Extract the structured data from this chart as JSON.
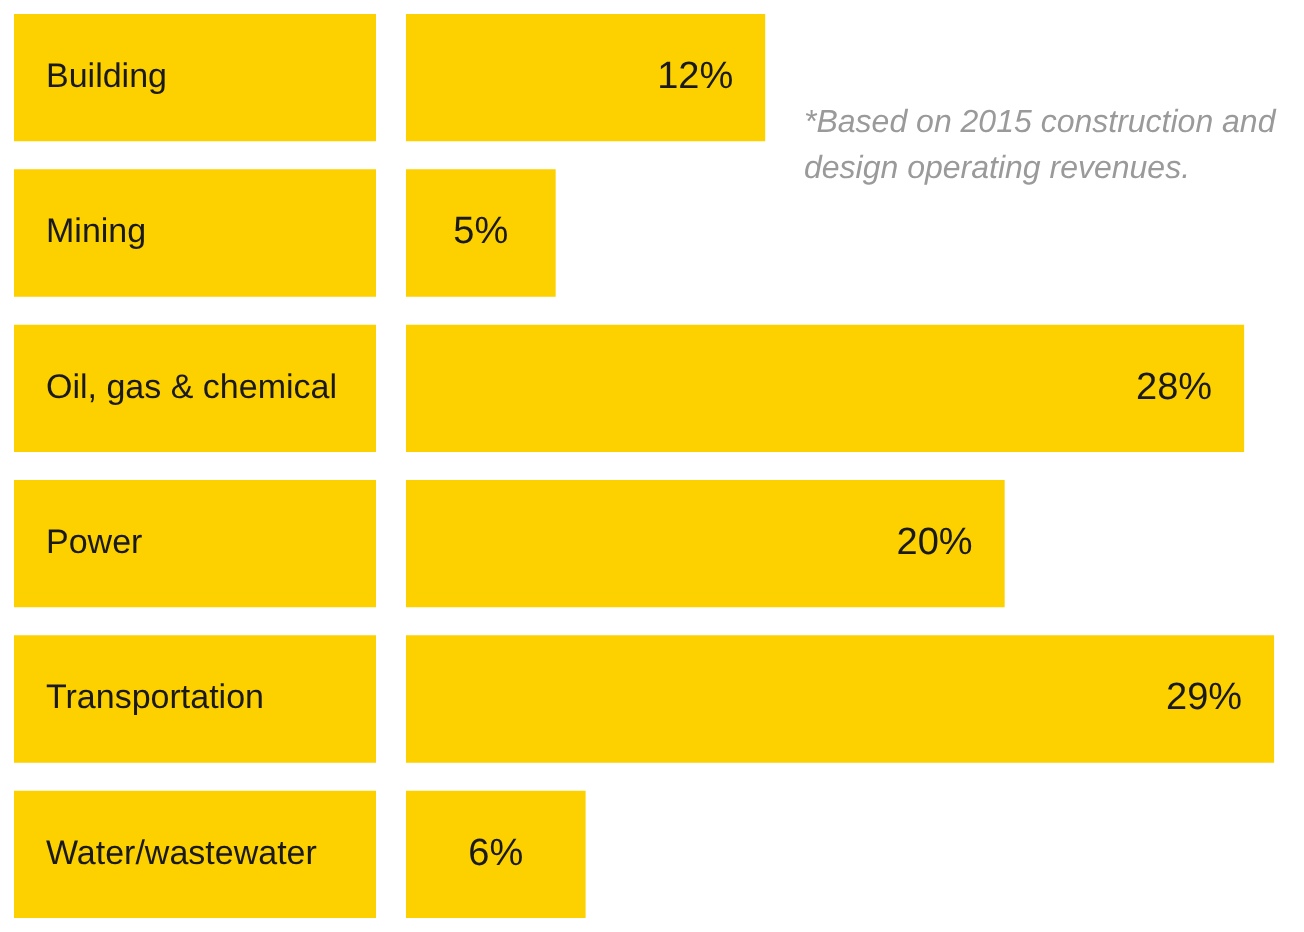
{
  "chart_data": {
    "type": "bar",
    "orientation": "horizontal",
    "categories": [
      "Building",
      "Mining",
      "Oil, gas & chemical",
      "Power",
      "Transportation",
      "Water/wastewater"
    ],
    "values": [
      12,
      5,
      28,
      20,
      29,
      6
    ],
    "value_labels": [
      "12%",
      "5%",
      "28%",
      "20%",
      "29%",
      "6%"
    ],
    "color": "#fdd000",
    "grid": false,
    "legend": false,
    "annotations": [
      "*Based on 2015 construction and design operating revenues."
    ]
  }
}
